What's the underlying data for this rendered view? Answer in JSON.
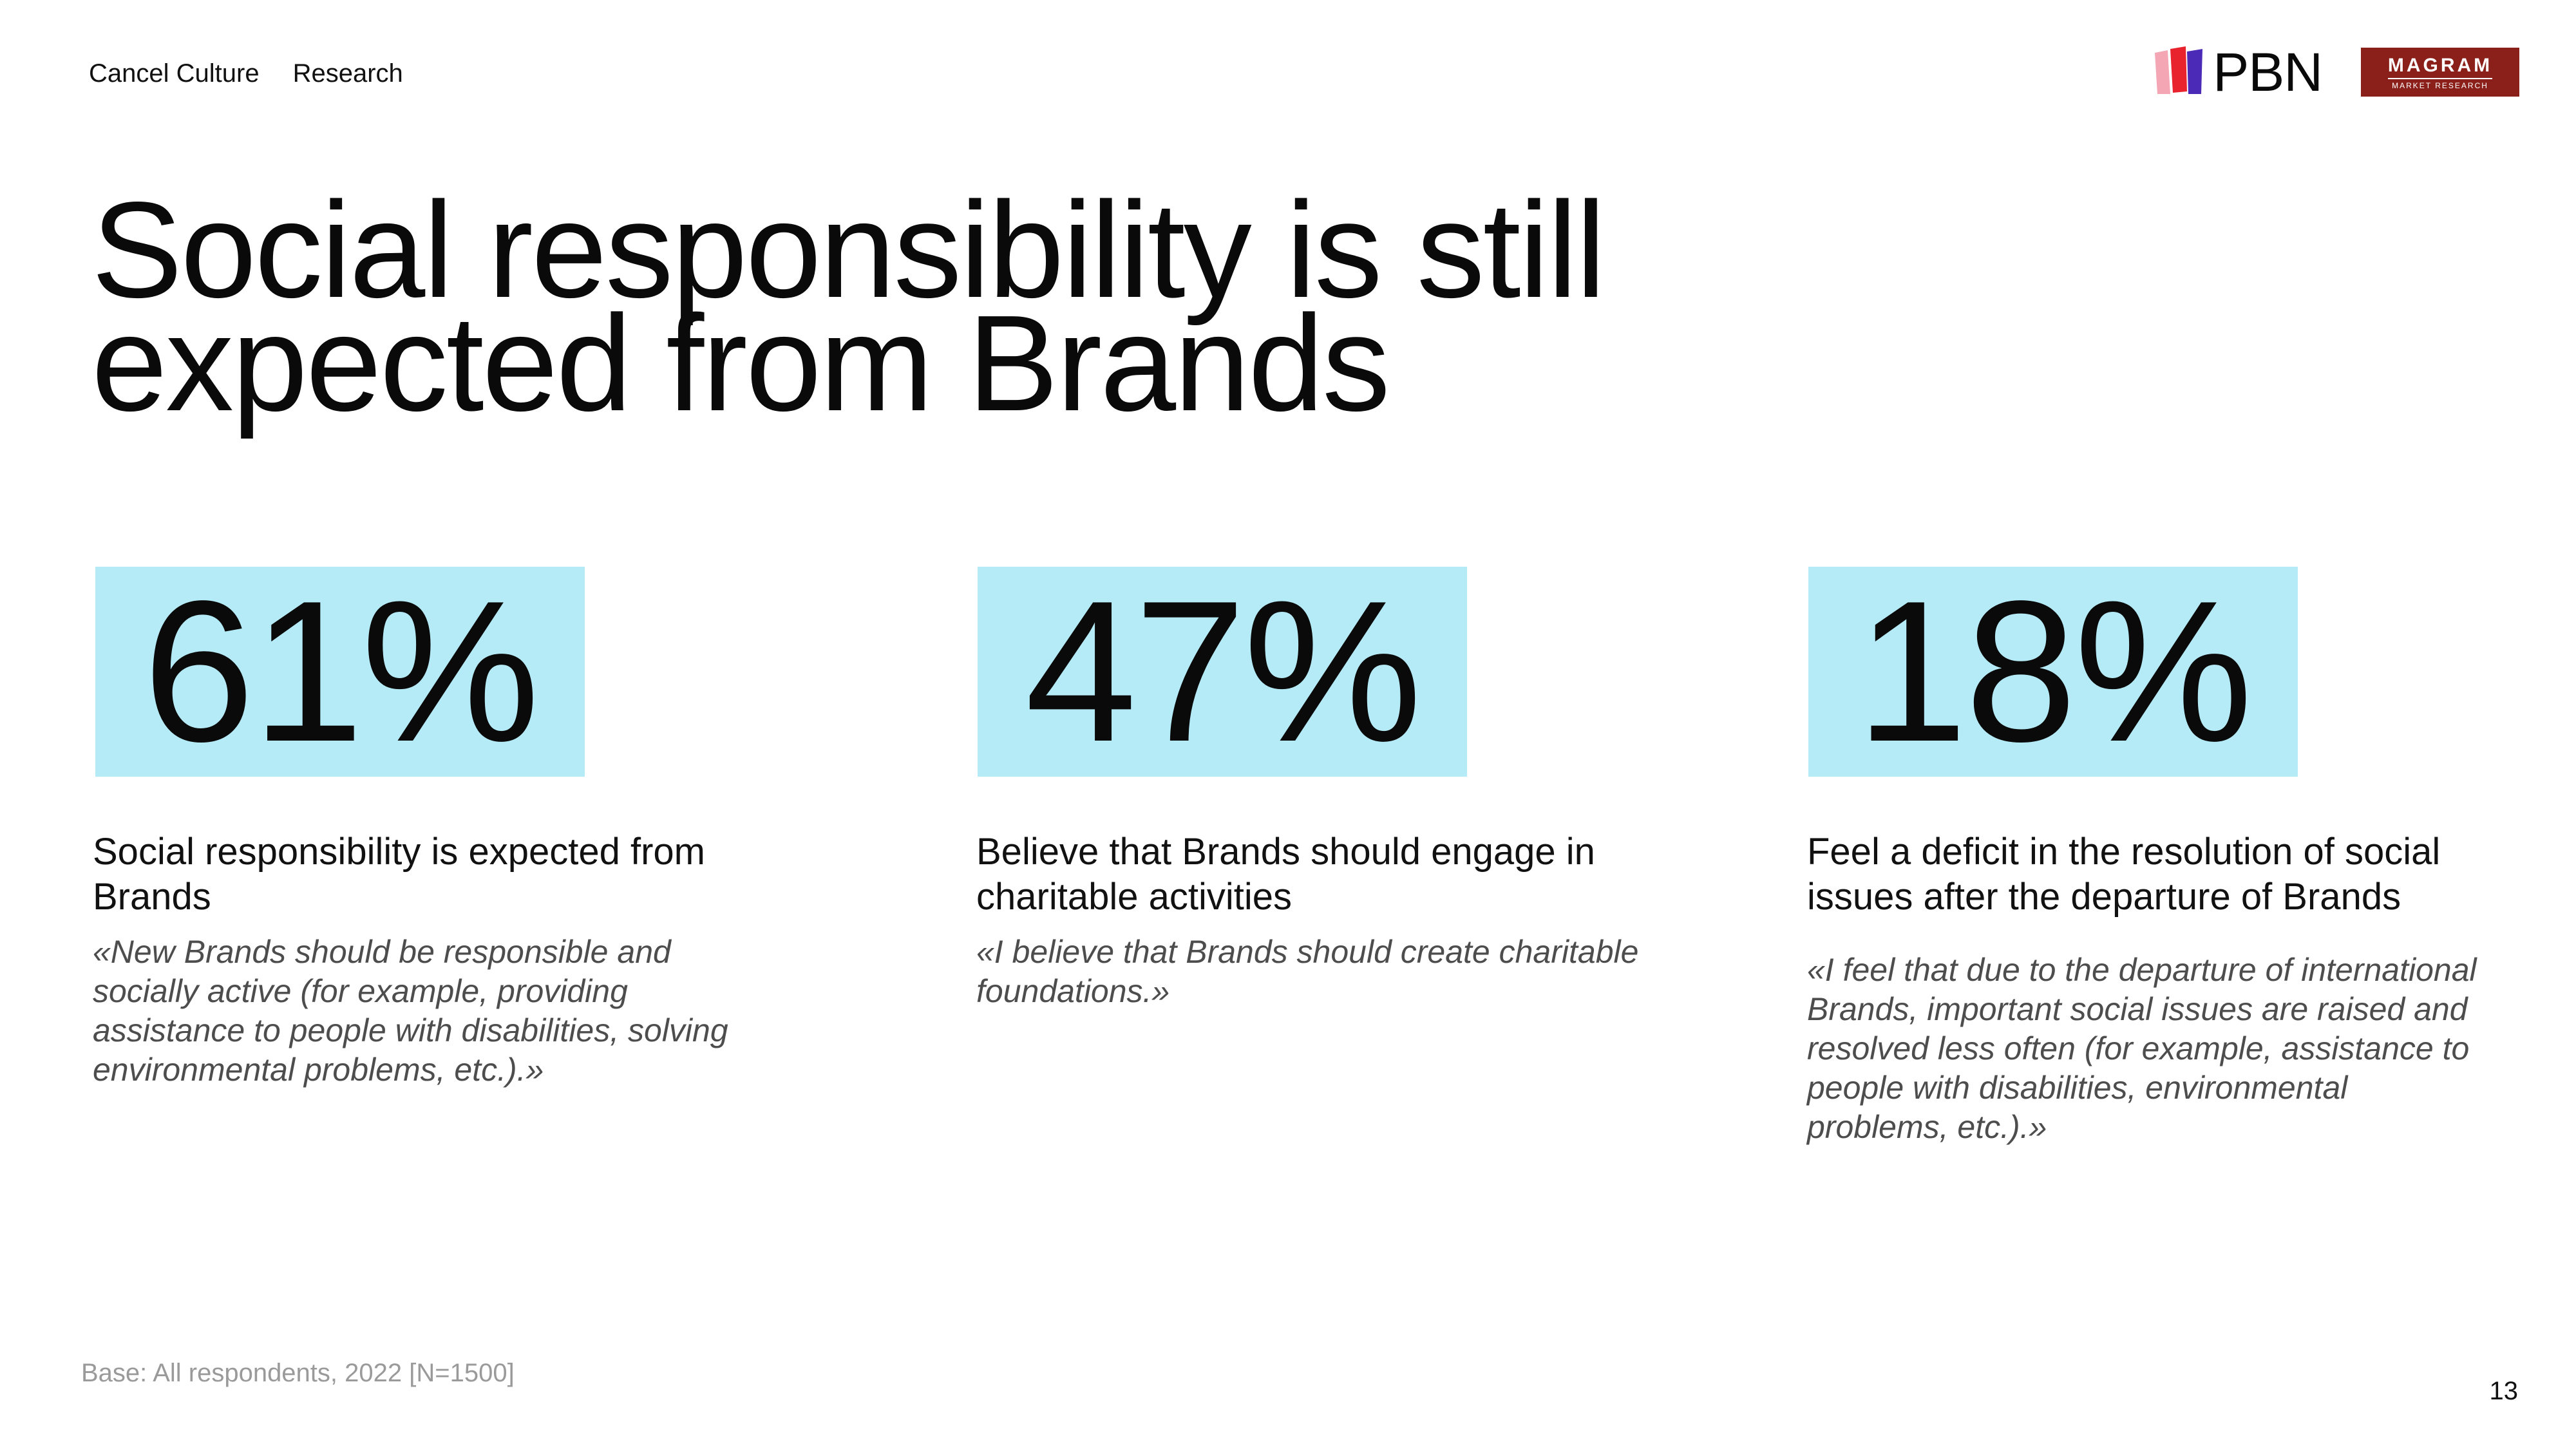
{
  "header": {
    "nav": [
      "Cancel Culture",
      "Research"
    ],
    "logos": {
      "pbn_text": "PBN",
      "magram_main": "MAGRAM",
      "magram_sub": "MARKET RESEARCH"
    }
  },
  "title": "Social responsibility is still expected from Brands",
  "stats": [
    {
      "value": "61%",
      "label": "Social responsibility is expected from Brands",
      "quote": "«New Brands should be responsible and socially active (for example, providing assistance to people with disabilities, solving environmental problems, etc.).»"
    },
    {
      "value": "47%",
      "label": "Believe that Brands should engage in charitable activities",
      "quote": "«I believe that Brands should create charitable foundations.»"
    },
    {
      "value": "18%",
      "label": "Feel a deficit in the resolution of social issues after the departure of Brands",
      "quote": "«I feel that due to the departure of international Brands, important social issues are raised and resolved less often (for example, assistance to people with disabilities, environmental problems, etc.).»"
    }
  ],
  "footer": {
    "base_note": "Base: All respondents, 2022 [N=1500]",
    "page_number": "13"
  },
  "colors": {
    "stat_box": "#b5ebf7",
    "magram": "#8b1f1a",
    "pbn_red": "#e8232e",
    "pbn_purple": "#4b2ab8",
    "pbn_pink": "#f4a6b4"
  }
}
